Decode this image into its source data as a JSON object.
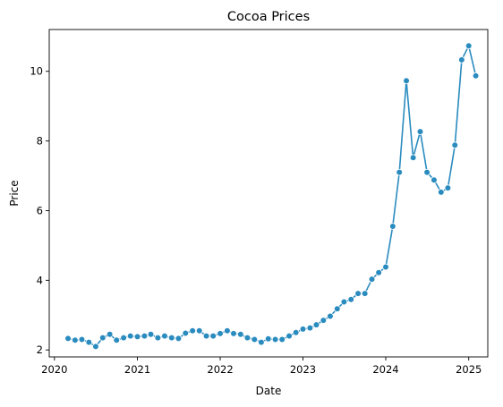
{
  "chart_data": {
    "type": "line",
    "title": "Cocoa Prices",
    "xlabel": "Date",
    "ylabel": "Price",
    "xlim": [
      "2019-12-09",
      "2025-03-26"
    ],
    "ylim": [
      1.8,
      11.2
    ],
    "x_ticks": [
      "2020",
      "2021",
      "2022",
      "2023",
      "2024",
      "2025"
    ],
    "y_ticks": [
      2,
      4,
      6,
      8,
      10
    ],
    "grid": false,
    "legend": "none",
    "marker": "circle",
    "color": "#2a8bbf",
    "series": [
      {
        "x": [
          "2020-03-01",
          "2020-04-01",
          "2020-05-01",
          "2020-06-01",
          "2020-07-01",
          "2020-08-01",
          "2020-09-01",
          "2020-10-01",
          "2020-11-01",
          "2020-12-01",
          "2021-01-01",
          "2021-02-01",
          "2021-03-01",
          "2021-04-01",
          "2021-05-01",
          "2021-06-01",
          "2021-07-01",
          "2021-08-01",
          "2021-09-01",
          "2021-10-01",
          "2021-11-01",
          "2021-12-01",
          "2022-01-01",
          "2022-02-01",
          "2022-03-01",
          "2022-04-01",
          "2022-05-01",
          "2022-06-01",
          "2022-07-01",
          "2022-08-01",
          "2022-09-01",
          "2022-10-01",
          "2022-11-01",
          "2022-12-01",
          "2023-01-01",
          "2023-02-01",
          "2023-03-01",
          "2023-04-01",
          "2023-05-01",
          "2023-06-01",
          "2023-07-01",
          "2023-08-01",
          "2023-09-01",
          "2023-10-01",
          "2023-11-01",
          "2023-12-01",
          "2024-01-01",
          "2024-02-01",
          "2024-03-01",
          "2024-04-01",
          "2024-05-01",
          "2024-06-01",
          "2024-07-01",
          "2024-08-01",
          "2024-09-01",
          "2024-10-01",
          "2024-11-01",
          "2024-12-01",
          "2025-01-01",
          "2025-02-01"
        ],
        "y": [
          2.33,
          2.28,
          2.3,
          2.22,
          2.1,
          2.35,
          2.45,
          2.28,
          2.35,
          2.4,
          2.38,
          2.4,
          2.45,
          2.35,
          2.4,
          2.35,
          2.33,
          2.48,
          2.55,
          2.55,
          2.4,
          2.4,
          2.47,
          2.55,
          2.47,
          2.45,
          2.35,
          2.3,
          2.22,
          2.32,
          2.3,
          2.3,
          2.4,
          2.5,
          2.6,
          2.63,
          2.72,
          2.85,
          2.97,
          3.18,
          3.38,
          3.45,
          3.62,
          3.62,
          4.03,
          4.22,
          4.38,
          5.55,
          7.1,
          9.73,
          7.52,
          8.27,
          7.1,
          6.88,
          6.53,
          6.65,
          7.88,
          10.33,
          10.73,
          9.87
        ]
      }
    ]
  }
}
